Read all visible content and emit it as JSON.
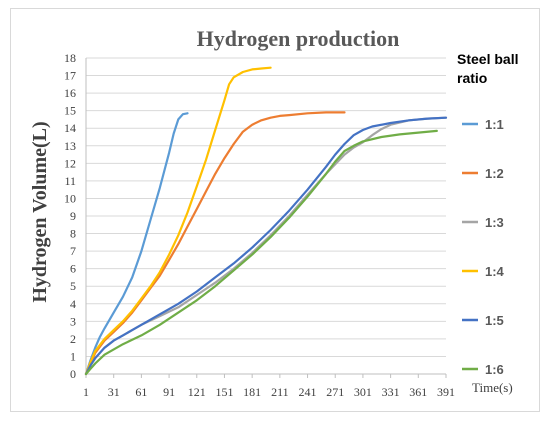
{
  "chart_data": {
    "type": "line",
    "title": "Hydrogen production",
    "xlabel": "Time(s)",
    "ylabel": "Hydrogen Volume(L)",
    "xlim": [
      1,
      391
    ],
    "ylim": [
      0,
      18
    ],
    "x_ticks": [
      1,
      31,
      61,
      91,
      121,
      151,
      181,
      211,
      241,
      271,
      301,
      331,
      361,
      391
    ],
    "y_ticks": [
      0,
      1,
      2,
      3,
      4,
      5,
      6,
      7,
      8,
      9,
      10,
      11,
      12,
      13,
      14,
      15,
      16,
      17,
      18
    ],
    "grid": "horizontal",
    "legend_position": "right",
    "legend_title": "Steel ball ratio",
    "series": [
      {
        "name": "1:1",
        "color": "#5B9BD5",
        "x": [
          1,
          6,
          11,
          16,
          21,
          31,
          41,
          51,
          61,
          71,
          81,
          91,
          96,
          101,
          106,
          111
        ],
        "y": [
          0,
          0.8,
          1.5,
          2.1,
          2.6,
          3.5,
          4.4,
          5.5,
          7.0,
          8.8,
          10.6,
          12.6,
          13.7,
          14.5,
          14.8,
          14.85
        ]
      },
      {
        "name": "1:2",
        "color": "#ED7D31",
        "x": [
          1,
          6,
          11,
          21,
          31,
          41,
          51,
          61,
          71,
          81,
          91,
          101,
          111,
          121,
          131,
          141,
          151,
          161,
          171,
          181,
          191,
          201,
          211,
          221,
          241,
          261,
          281
        ],
        "y": [
          0,
          0.6,
          1.2,
          1.9,
          2.4,
          2.9,
          3.5,
          4.2,
          4.9,
          5.6,
          6.5,
          7.4,
          8.4,
          9.4,
          10.4,
          11.4,
          12.3,
          13.1,
          13.8,
          14.2,
          14.45,
          14.6,
          14.7,
          14.75,
          14.85,
          14.9,
          14.9
        ]
      },
      {
        "name": "1:3",
        "color": "#A5A5A5",
        "x": [
          1,
          6,
          11,
          21,
          31,
          41,
          51,
          61,
          81,
          101,
          121,
          141,
          161,
          181,
          201,
          221,
          241,
          261,
          281,
          291,
          301,
          311,
          321,
          331,
          351,
          371,
          391
        ],
        "y": [
          0,
          0.5,
          0.9,
          1.5,
          1.9,
          2.2,
          2.5,
          2.8,
          3.3,
          3.8,
          4.5,
          5.2,
          6.0,
          6.9,
          7.9,
          9.0,
          10.2,
          11.4,
          12.5,
          12.9,
          13.2,
          13.6,
          13.95,
          14.2,
          14.45,
          14.55,
          14.6
        ]
      },
      {
        "name": "1:4",
        "color": "#FFC000",
        "x": [
          1,
          6,
          11,
          21,
          31,
          41,
          51,
          61,
          71,
          81,
          91,
          101,
          111,
          121,
          131,
          141,
          151,
          156,
          161,
          171,
          181,
          191,
          201
        ],
        "y": [
          0,
          0.7,
          1.3,
          2.0,
          2.5,
          3.0,
          3.6,
          4.3,
          5.0,
          5.8,
          6.8,
          7.9,
          9.2,
          10.7,
          12.2,
          13.9,
          15.6,
          16.5,
          16.9,
          17.2,
          17.35,
          17.4,
          17.45
        ]
      },
      {
        "name": "1:5",
        "color": "#4472C4",
        "x": [
          1,
          6,
          11,
          21,
          31,
          41,
          51,
          61,
          81,
          101,
          121,
          141,
          161,
          181,
          201,
          221,
          241,
          261,
          271,
          281,
          291,
          301,
          311,
          331,
          351,
          371,
          391
        ],
        "y": [
          0,
          0.5,
          0.9,
          1.5,
          1.9,
          2.2,
          2.5,
          2.8,
          3.4,
          4.0,
          4.7,
          5.5,
          6.3,
          7.2,
          8.2,
          9.3,
          10.5,
          11.8,
          12.5,
          13.1,
          13.6,
          13.9,
          14.1,
          14.3,
          14.45,
          14.55,
          14.6
        ]
      },
      {
        "name": "1:6",
        "color": "#70AD47",
        "x": [
          1,
          6,
          11,
          21,
          31,
          41,
          51,
          61,
          81,
          101,
          121,
          141,
          161,
          181,
          201,
          221,
          241,
          261,
          271,
          281,
          291,
          301,
          321,
          341,
          361,
          381
        ],
        "y": [
          0,
          0.3,
          0.6,
          1.1,
          1.4,
          1.7,
          1.95,
          2.2,
          2.8,
          3.5,
          4.2,
          5.0,
          5.9,
          6.8,
          7.8,
          8.9,
          10.1,
          11.4,
          12.1,
          12.7,
          13.0,
          13.25,
          13.5,
          13.65,
          13.75,
          13.85
        ]
      }
    ]
  }
}
